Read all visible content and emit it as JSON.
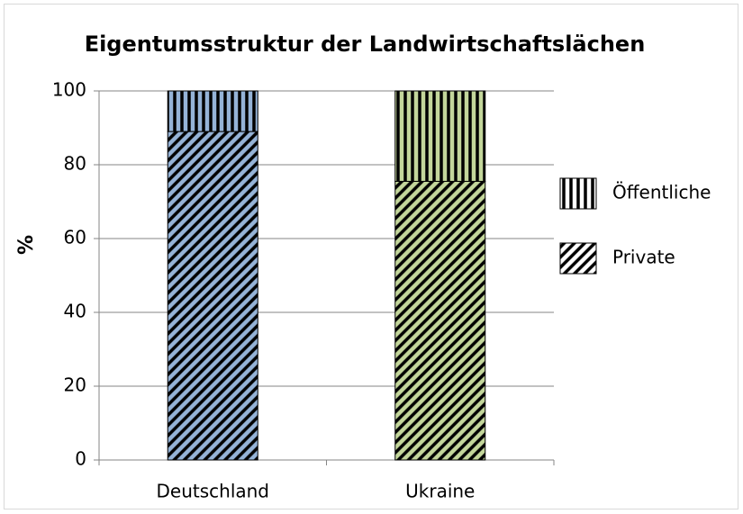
{
  "chart_data": {
    "type": "stacked_bar",
    "title": "Eigentumsstruktur der Landwirtschaftslächen",
    "y_label": "%",
    "categories": [
      "Deutschland",
      "Ukraine"
    ],
    "category_colors": [
      "#95b3d7",
      "#c3d69b"
    ],
    "series": [
      {
        "name": "Private",
        "pattern": "diagonal",
        "values": [
          89,
          75.5
        ]
      },
      {
        "name": "Öffentliche",
        "pattern": "vertical",
        "values": [
          11,
          24.5
        ]
      }
    ],
    "ylim": [
      0,
      100
    ],
    "yticks": [
      0,
      20,
      40,
      60,
      80,
      100
    ],
    "grid": true,
    "legend": "right"
  }
}
